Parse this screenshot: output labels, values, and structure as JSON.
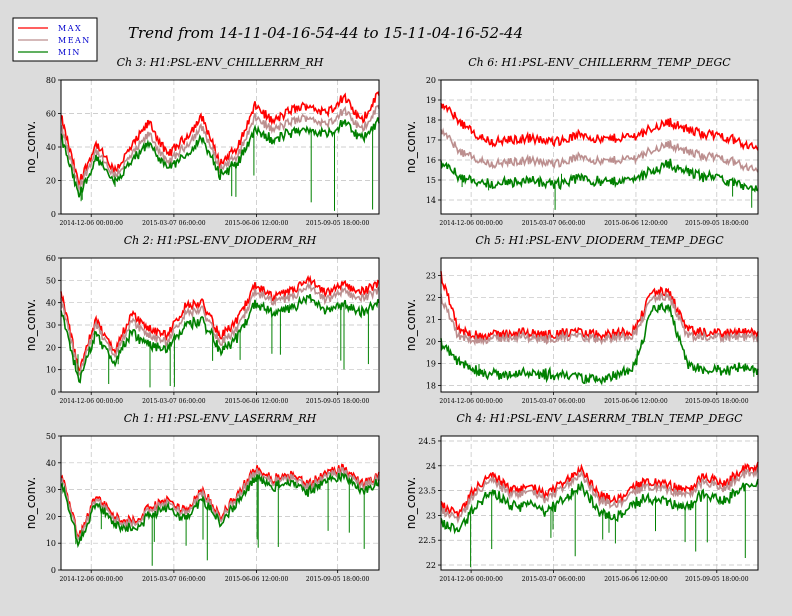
{
  "legend": {
    "items": [
      {
        "label": "MAX",
        "color": "#ff0000"
      },
      {
        "label": "MEAN",
        "color": "#bc8f8f"
      },
      {
        "label": "MIN",
        "color": "#008000"
      }
    ],
    "text_color": "#0000cd"
  },
  "title": "Trend from 14-11-04-16-54-44 to 15-11-04-16-52-44",
  "colors": {
    "max": "#ff0000",
    "mean": "#bc8f8f",
    "min": "#008000",
    "background": "#dcdcdc",
    "plot_bg": "#ffffff"
  },
  "chart_data": [
    {
      "type": "area",
      "title": "Ch 3: H1:PSL-ENV_CHILLERRM_RH",
      "ylabel": "no_conv.",
      "ylim": [
        0,
        80
      ],
      "yticks": [
        0,
        20,
        40,
        60,
        80
      ],
      "xticks": [
        "2014-12-06 00:00:00",
        "2015-03-07 06:00:00",
        "2015-06-06 12:00:00",
        "2015-09-05 18:00:00"
      ],
      "grid": true,
      "series": [
        {
          "name": "MAX",
          "values": [
            58,
            18,
            42,
            25,
            40,
            55,
            35,
            45,
            58,
            30,
            40,
            65,
            55,
            62,
            65,
            60,
            70,
            55,
            72
          ]
        },
        {
          "name": "MEAN",
          "values": [
            52,
            15,
            38,
            22,
            35,
            48,
            30,
            40,
            52,
            27,
            35,
            58,
            50,
            55,
            58,
            53,
            62,
            50,
            64
          ]
        },
        {
          "name": "MIN",
          "values": [
            48,
            12,
            35,
            20,
            32,
            44,
            28,
            36,
            46,
            25,
            32,
            52,
            45,
            50,
            52,
            48,
            56,
            46,
            57
          ]
        }
      ]
    },
    {
      "type": "area",
      "title": "Ch 6: H1:PSL-ENV_CHILLERRM_TEMP_DEGC",
      "ylabel": "no_conv.",
      "ylim": [
        13.3,
        20
      ],
      "yticks": [
        14,
        15,
        16,
        17,
        18,
        19,
        20
      ],
      "xticks": [
        "2014-12-06 00:00:00",
        "2015-03-07 06:00:00",
        "2015-06-06 12:00:00",
        "2015-09-05 18:00:00"
      ],
      "grid": true,
      "series": [
        {
          "name": "MAX",
          "values": [
            18.8,
            18.0,
            17.2,
            16.9,
            17.0,
            17.1,
            16.9,
            17.0,
            17.3,
            17.0,
            17.1,
            17.2,
            17.6,
            17.9,
            17.5,
            17.3,
            17.2,
            16.9,
            16.5
          ]
        },
        {
          "name": "MEAN",
          "values": [
            17.5,
            16.5,
            16.0,
            15.8,
            15.9,
            16.0,
            15.8,
            15.9,
            16.2,
            15.9,
            16.0,
            16.1,
            16.5,
            16.8,
            16.4,
            16.2,
            16.1,
            15.8,
            15.4
          ]
        },
        {
          "name": "MIN",
          "values": [
            16.0,
            15.3,
            15.0,
            14.9,
            15.0,
            15.1,
            14.9,
            15.0,
            15.3,
            15.0,
            15.1,
            15.2,
            15.6,
            15.9,
            15.5,
            15.3,
            15.2,
            14.9,
            14.6
          ]
        }
      ]
    },
    {
      "type": "area",
      "title": "Ch 2: H1:PSL-ENV_DIODERM_RH",
      "ylabel": "no_conv.",
      "ylim": [
        0,
        60
      ],
      "yticks": [
        0,
        10,
        20,
        30,
        40,
        50,
        60
      ],
      "xticks": [
        "2014-12-06 00:00:00",
        "2015-03-07 06:00:00",
        "2015-06-06 12:00:00",
        "2015-09-05 18:00:00"
      ],
      "grid": true,
      "series": [
        {
          "name": "MAX",
          "values": [
            45,
            10,
            32,
            18,
            35,
            28,
            25,
            38,
            40,
            25,
            32,
            48,
            42,
            45,
            50,
            44,
            48,
            45,
            48
          ]
        },
        {
          "name": "MEAN",
          "values": [
            42,
            8,
            30,
            16,
            32,
            25,
            22,
            35,
            37,
            22,
            28,
            45,
            40,
            42,
            47,
            41,
            45,
            42,
            45
          ]
        },
        {
          "name": "MIN",
          "values": [
            38,
            6,
            27,
            14,
            28,
            22,
            20,
            31,
            33,
            20,
            25,
            41,
            36,
            38,
            43,
            37,
            40,
            37,
            40
          ]
        }
      ]
    },
    {
      "type": "area",
      "title": "Ch 5: H1:PSL-ENV_DIODERM_TEMP_DEGC",
      "ylabel": "no_conv.",
      "ylim": [
        17.7,
        23.8
      ],
      "yticks": [
        18,
        19,
        20,
        21,
        22,
        23
      ],
      "xticks": [
        "2014-12-06 00:00:00",
        "2015-03-07 06:00:00",
        "2015-06-06 12:00:00",
        "2015-09-05 18:00:00"
      ],
      "grid": true,
      "series": [
        {
          "name": "MAX",
          "values": [
            23.0,
            20.5,
            20.3,
            20.3,
            20.4,
            20.4,
            20.3,
            20.4,
            20.4,
            20.3,
            20.4,
            20.5,
            22.3,
            22.2,
            20.5,
            20.4,
            20.4,
            20.4,
            20.4
          ]
        },
        {
          "name": "MEAN",
          "values": [
            22.0,
            20.2,
            20.1,
            20.1,
            20.2,
            20.2,
            20.1,
            20.2,
            20.2,
            20.1,
            20.2,
            20.3,
            22.0,
            22.0,
            20.2,
            20.2,
            20.2,
            20.2,
            20.2
          ]
        },
        {
          "name": "MIN",
          "values": [
            20.0,
            19.2,
            18.8,
            18.6,
            18.6,
            18.7,
            18.6,
            18.6,
            18.4,
            18.4,
            18.6,
            19.0,
            21.6,
            21.6,
            19.0,
            18.8,
            18.8,
            18.9,
            18.8
          ]
        }
      ]
    },
    {
      "type": "area",
      "title": "Ch 1: H1:PSL-ENV_LASERRM_RH",
      "ylabel": "no_conv.",
      "ylim": [
        0,
        50
      ],
      "yticks": [
        0,
        10,
        20,
        30,
        40,
        50
      ],
      "xticks": [
        "2014-12-06 00:00:00",
        "2015-03-07 06:00:00",
        "2015-06-06 12:00:00",
        "2015-09-05 18:00:00"
      ],
      "grid": true,
      "series": [
        {
          "name": "MAX",
          "values": [
            36,
            12,
            28,
            20,
            18,
            23,
            26,
            22,
            30,
            20,
            28,
            38,
            34,
            36,
            32,
            36,
            38,
            32,
            35
          ]
        },
        {
          "name": "MEAN",
          "values": [
            35,
            11,
            27,
            19,
            17,
            22,
            25,
            21,
            29,
            19,
            27,
            37,
            33,
            35,
            31,
            35,
            37,
            31,
            34
          ]
        },
        {
          "name": "MIN",
          "values": [
            34,
            10,
            26,
            18,
            16,
            21,
            24,
            20,
            28,
            18,
            26,
            36,
            32,
            34,
            30,
            34,
            36,
            30,
            33
          ]
        }
      ]
    },
    {
      "type": "area",
      "title": "Ch 4: H1:PSL-ENV_LASERRM_TBLN_TEMP_DEGC",
      "ylabel": "no_conv.",
      "ylim": [
        21.9,
        24.6
      ],
      "yticks": [
        22,
        22.5,
        23,
        23.5,
        24,
        24.5
      ],
      "xticks": [
        "2014-12-06 00:00:00",
        "2015-03-07 06:00:00",
        "2015-06-06 12:00:00",
        "2015-09-05 18:00:00"
      ],
      "grid": true,
      "series": [
        {
          "name": "MAX",
          "values": [
            23.2,
            23.0,
            23.6,
            23.8,
            23.5,
            23.6,
            23.4,
            23.7,
            23.9,
            23.4,
            23.3,
            23.6,
            23.7,
            23.6,
            23.5,
            23.8,
            23.6,
            23.9,
            24.0
          ]
        },
        {
          "name": "MEAN",
          "values": [
            23.1,
            22.9,
            23.5,
            23.7,
            23.4,
            23.5,
            23.3,
            23.6,
            23.8,
            23.3,
            23.2,
            23.5,
            23.6,
            23.5,
            23.4,
            23.7,
            23.5,
            23.8,
            23.9
          ]
        },
        {
          "name": "MIN",
          "values": [
            22.9,
            22.7,
            23.3,
            23.5,
            23.2,
            23.3,
            23.1,
            23.4,
            23.6,
            23.1,
            23.0,
            23.3,
            23.4,
            23.3,
            23.2,
            23.5,
            23.3,
            23.6,
            23.7
          ]
        }
      ]
    }
  ]
}
